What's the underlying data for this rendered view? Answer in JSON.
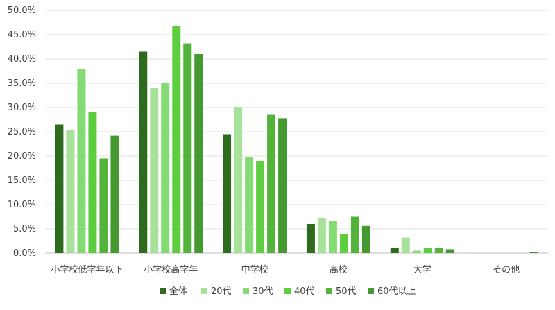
{
  "chart_data": {
    "type": "bar",
    "categories": [
      "小学校低学年以下",
      "小学校高学年",
      "中学校",
      "高校",
      "大学",
      "その他"
    ],
    "series": [
      {
        "name": "全体",
        "color": "#2e6b1c",
        "values": [
          26.5,
          41.5,
          24.5,
          6.0,
          1.0,
          0.0
        ]
      },
      {
        "name": "20代",
        "color": "#a8e29a",
        "values": [
          25.3,
          34.0,
          30.0,
          7.2,
          3.2,
          0.0
        ]
      },
      {
        "name": "30代",
        "color": "#85db73",
        "values": [
          38.0,
          35.0,
          19.7,
          6.6,
          0.5,
          0.0
        ]
      },
      {
        "name": "40代",
        "color": "#5fcd40",
        "values": [
          29.0,
          46.8,
          19.0,
          4.0,
          1.0,
          0.0
        ]
      },
      {
        "name": "50代",
        "color": "#53b33a",
        "values": [
          19.5,
          43.2,
          28.5,
          7.5,
          1.0,
          0.0
        ]
      },
      {
        "name": "60代以上",
        "color": "#449a30",
        "values": [
          24.2,
          41.0,
          27.8,
          5.6,
          0.8,
          0.2
        ]
      }
    ],
    "yticks": [
      "0.0%",
      "5.0%",
      "10.0%",
      "15.0%",
      "20.0%",
      "25.0%",
      "30.0%",
      "35.0%",
      "40.0%",
      "45.0%",
      "50.0%"
    ],
    "ylim": [
      0,
      50
    ],
    "grid": true,
    "legend_position": "bottom"
  }
}
